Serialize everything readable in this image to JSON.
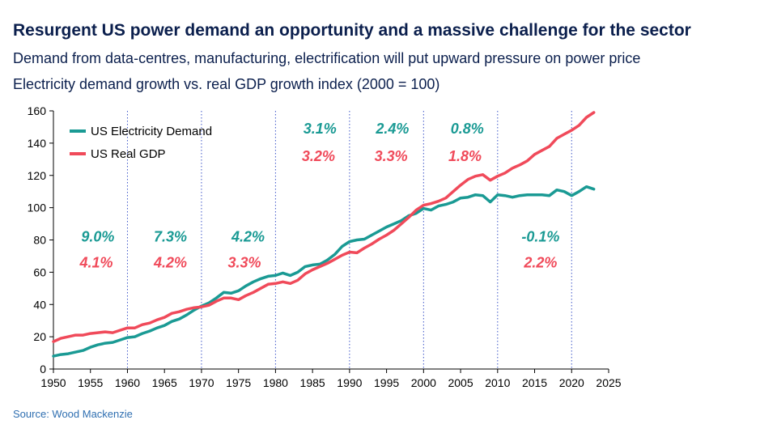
{
  "header": {
    "title": "Resurgent US power demand an opportunity and a massive challenge for the sector",
    "subtitle": "Demand from data-centres, manufacturing, electrification will put upward pressure on power price",
    "chart_title": "Electricity demand growth vs. real GDP growth index (2000 = 100)"
  },
  "footer": {
    "source": "Source: Wood Mackenzie"
  },
  "colors": {
    "demand": "#1a9a94",
    "gdp": "#f04a5a",
    "divider": "#3d55c8",
    "axis": "#000000"
  },
  "chart_data": {
    "type": "line",
    "xlabel": "",
    "ylabel": "",
    "xlim": [
      1950,
      2025
    ],
    "ylim": [
      0,
      160
    ],
    "x_ticks": [
      1950,
      1955,
      1960,
      1965,
      1970,
      1975,
      1980,
      1985,
      1990,
      1995,
      2000,
      2005,
      2010,
      2015,
      2020,
      2025
    ],
    "y_ticks": [
      0,
      20,
      40,
      60,
      80,
      100,
      120,
      140,
      160
    ],
    "grid": false,
    "legend_position": "top-left",
    "decade_dividers": [
      1960,
      1970,
      1980,
      1990,
      2000,
      2010,
      2020
    ],
    "series": [
      {
        "name": "US Electricity Demand",
        "color": "#1a9a94",
        "x": [
          1950,
          1951,
          1952,
          1953,
          1954,
          1955,
          1956,
          1957,
          1958,
          1959,
          1960,
          1961,
          1962,
          1963,
          1964,
          1965,
          1966,
          1967,
          1968,
          1969,
          1970,
          1971,
          1972,
          1973,
          1974,
          1975,
          1976,
          1977,
          1978,
          1979,
          1980,
          1981,
          1982,
          1983,
          1984,
          1985,
          1986,
          1987,
          1988,
          1989,
          1990,
          1991,
          1992,
          1993,
          1994,
          1995,
          1996,
          1997,
          1998,
          1999,
          2000,
          2001,
          2002,
          2003,
          2004,
          2005,
          2006,
          2007,
          2008,
          2009,
          2010,
          2011,
          2012,
          2013,
          2014,
          2015,
          2016,
          2017,
          2018,
          2019,
          2020,
          2021,
          2022,
          2023
        ],
        "values": [
          8,
          9,
          9.5,
          10.5,
          11.5,
          13.5,
          15,
          16,
          16.5,
          18,
          19.5,
          20,
          22,
          23.5,
          25.5,
          27,
          29.5,
          31,
          33.5,
          36.5,
          39,
          41,
          44,
          47.5,
          47,
          48.5,
          51.5,
          54,
          56,
          57.5,
          58,
          59.5,
          58,
          60,
          63.5,
          64.5,
          65,
          67.5,
          71,
          76,
          79,
          80,
          80.5,
          83,
          85.5,
          88,
          90,
          92,
          95,
          96.5,
          99.5,
          98.5,
          101,
          102,
          103.5,
          106,
          106.5,
          108,
          107.5,
          103.5,
          108,
          107.5,
          106.5,
          107.5,
          108,
          108,
          108,
          107.5,
          111,
          110,
          107.5,
          110,
          113,
          111.5
        ]
      },
      {
        "name": "US Real GDP",
        "color": "#f04a5a",
        "x": [
          1950,
          1951,
          1952,
          1953,
          1954,
          1955,
          1956,
          1957,
          1958,
          1959,
          1960,
          1961,
          1962,
          1963,
          1964,
          1965,
          1966,
          1967,
          1968,
          1969,
          1970,
          1971,
          1972,
          1973,
          1974,
          1975,
          1976,
          1977,
          1978,
          1979,
          1980,
          1981,
          1982,
          1983,
          1984,
          1985,
          1986,
          1987,
          1988,
          1989,
          1990,
          1991,
          1992,
          1993,
          1994,
          1995,
          1996,
          1997,
          1998,
          1999,
          2000,
          2001,
          2002,
          2003,
          2004,
          2005,
          2006,
          2007,
          2008,
          2009,
          2010,
          2011,
          2012,
          2013,
          2014,
          2015,
          2016,
          2017,
          2018,
          2019,
          2020,
          2021,
          2022,
          2023
        ],
        "values": [
          17,
          19,
          20,
          21,
          21,
          22,
          22.5,
          23,
          22.5,
          24,
          25.5,
          25.5,
          27.5,
          28.5,
          30.5,
          32,
          34.5,
          35.5,
          37,
          38,
          38.5,
          39.5,
          42,
          44,
          44,
          43,
          45.5,
          47.5,
          50,
          52.5,
          53,
          54,
          53,
          55,
          59,
          61.5,
          63.5,
          65.5,
          68,
          70.5,
          72.5,
          72,
          75,
          77.5,
          80.5,
          83,
          86,
          90,
          94,
          98.5,
          101.5,
          102.5,
          104,
          106,
          110,
          114,
          117.5,
          119.5,
          120.5,
          117,
          119.5,
          121.5,
          124.5,
          126.5,
          129,
          133,
          135.5,
          138,
          143,
          145.5,
          148,
          151,
          156,
          159
        ]
      }
    ],
    "annotations": {
      "demand": [
        {
          "label": "9.0%",
          "x": 1956.0,
          "y": 79
        },
        {
          "label": "7.3%",
          "x": 1965.8,
          "y": 79
        },
        {
          "label": "4.2%",
          "x": 1976.3,
          "y": 79
        },
        {
          "label": "3.1%",
          "x": 1986.0,
          "y": 146
        },
        {
          "label": "2.4%",
          "x": 1995.8,
          "y": 146
        },
        {
          "label": "0.8%",
          "x": 2005.9,
          "y": 146
        },
        {
          "label": "-0.1%",
          "x": 2015.8,
          "y": 79
        }
      ],
      "gdp": [
        {
          "label": "4.1%",
          "x": 1955.8,
          "y": 63
        },
        {
          "label": "4.2%",
          "x": 1965.8,
          "y": 63
        },
        {
          "label": "3.3%",
          "x": 1975.8,
          "y": 63
        },
        {
          "label": "3.2%",
          "x": 1985.8,
          "y": 129
        },
        {
          "label": "3.3%",
          "x": 1995.6,
          "y": 129
        },
        {
          "label": "1.8%",
          "x": 2005.6,
          "y": 129
        },
        {
          "label": "2.2%",
          "x": 2015.8,
          "y": 63
        }
      ]
    }
  }
}
